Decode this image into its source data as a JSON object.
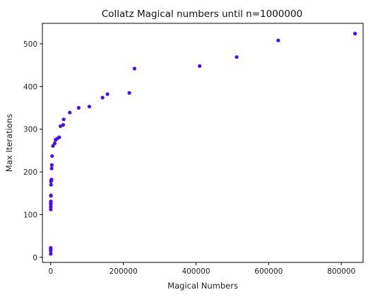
{
  "chart_data": {
    "type": "scatter",
    "title": "Collatz Magical numbers until n=1000000",
    "xlabel": "Magical Numbers",
    "ylabel": "Max Iterations",
    "xlim": [
      -23000,
      860000
    ],
    "ylim": [
      -12,
      548
    ],
    "xticks": [
      0,
      200000,
      400000,
      600000,
      800000
    ],
    "yticks": [
      0,
      100,
      200,
      300,
      400,
      500
    ],
    "grid": false,
    "point_color": "#4b0df0",
    "points": [
      {
        "x": 1,
        "y": 8
      },
      {
        "x": 3,
        "y": 15
      },
      {
        "x": 7,
        "y": 19
      },
      {
        "x": 9,
        "y": 22
      },
      {
        "x": 27,
        "y": 112
      },
      {
        "x": 97,
        "y": 118
      },
      {
        "x": 171,
        "y": 124
      },
      {
        "x": 231,
        "y": 127
      },
      {
        "x": 313,
        "y": 131
      },
      {
        "x": 327,
        "y": 144
      },
      {
        "x": 649,
        "y": 145
      },
      {
        "x": 703,
        "y": 170
      },
      {
        "x": 871,
        "y": 178
      },
      {
        "x": 1161,
        "y": 181
      },
      {
        "x": 2223,
        "y": 182
      },
      {
        "x": 2463,
        "y": 208
      },
      {
        "x": 2919,
        "y": 216
      },
      {
        "x": 3711,
        "y": 237
      },
      {
        "x": 6171,
        "y": 261
      },
      {
        "x": 10971,
        "y": 267
      },
      {
        "x": 13255,
        "y": 275
      },
      {
        "x": 17647,
        "y": 278
      },
      {
        "x": 23529,
        "y": 281
      },
      {
        "x": 26623,
        "y": 307
      },
      {
        "x": 34239,
        "y": 310
      },
      {
        "x": 35655,
        "y": 323
      },
      {
        "x": 52527,
        "y": 339
      },
      {
        "x": 77031,
        "y": 350
      },
      {
        "x": 106239,
        "y": 353
      },
      {
        "x": 142587,
        "y": 374
      },
      {
        "x": 156159,
        "y": 382
      },
      {
        "x": 216367,
        "y": 385
      },
      {
        "x": 230631,
        "y": 442
      },
      {
        "x": 410011,
        "y": 448
      },
      {
        "x": 511935,
        "y": 469
      },
      {
        "x": 626331,
        "y": 508
      },
      {
        "x": 837799,
        "y": 524
      }
    ]
  }
}
